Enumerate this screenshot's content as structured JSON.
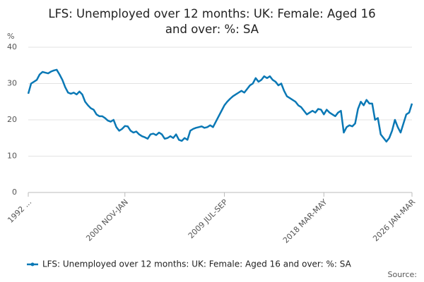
{
  "chart_data": {
    "type": "line",
    "title": "LFS: Unemployed over 12 months: UK: Female: Aged 16 and over: %: SA",
    "y_label": "%",
    "source": "Source:",
    "categories": [
      "1992 ...",
      null,
      null,
      null,
      null,
      null,
      null,
      null,
      null,
      null,
      null,
      null,
      null,
      null,
      null,
      null,
      null,
      null,
      null,
      null,
      null,
      null,
      null,
      null,
      null,
      null,
      null,
      null,
      null,
      null,
      null,
      null,
      null,
      null,
      "2000 NOV-JAN",
      null,
      null,
      null,
      null,
      null,
      null,
      null,
      null,
      null,
      null,
      null,
      null,
      null,
      null,
      null,
      null,
      null,
      null,
      null,
      null,
      null,
      null,
      null,
      null,
      null,
      null,
      null,
      null,
      null,
      null,
      null,
      null,
      null,
      null,
      "2009 JUL-SEP",
      null,
      null,
      null,
      null,
      null,
      null,
      null,
      null,
      null,
      null,
      null,
      null,
      null,
      null,
      null,
      null,
      null,
      null,
      null,
      null,
      null,
      null,
      null,
      null,
      null,
      null,
      null,
      null,
      null,
      null,
      null,
      null,
      null,
      null,
      "2018 MAR-MAY",
      null,
      null,
      null,
      null,
      null,
      null,
      null,
      null,
      null,
      null,
      null,
      null,
      null,
      null,
      null,
      null,
      null,
      null,
      null,
      null,
      null,
      null,
      null,
      null,
      null,
      null,
      null,
      null,
      null,
      null,
      "2026 JAN-MAR"
    ],
    "series": [
      {
        "name": "LFS: Unemployed over 12 months: UK: Female: Aged 16 and over: %: SA",
        "color": "#0a78b5",
        "values": [
          27.2,
          30,
          30.5,
          31,
          32.5,
          33.2,
          33,
          32.8,
          33.3,
          33.6,
          33.8,
          32.5,
          31,
          29,
          27.5,
          27.2,
          27.5,
          27,
          27.8,
          27,
          25,
          24,
          23.2,
          22.8,
          21.5,
          21,
          21,
          20.5,
          19.8,
          19.5,
          20,
          18,
          17,
          17.5,
          18.3,
          18.2,
          17,
          16.5,
          16.8,
          16,
          15.5,
          15.2,
          14.8,
          16,
          16.2,
          15.8,
          16.5,
          16,
          14.8,
          15,
          15.5,
          15,
          16,
          14.5,
          14.2,
          15,
          14.5,
          17,
          17.5,
          17.8,
          18,
          18.2,
          17.8,
          18,
          18.5,
          18,
          19.5,
          21,
          22.5,
          24,
          25,
          25.8,
          26.5,
          27,
          27.5,
          28,
          27.5,
          28.5,
          29.5,
          30,
          31.5,
          30.5,
          31,
          32,
          31.5,
          32,
          31,
          30.5,
          29.5,
          30,
          28,
          26.5,
          26,
          25.5,
          25,
          24,
          23.5,
          22.5,
          21.5,
          22,
          22.5,
          22,
          23,
          22.8,
          21.5,
          22.8,
          22,
          21.5,
          21,
          22,
          22.5,
          16.5,
          18,
          18.5,
          18.2,
          19,
          23,
          25,
          24,
          25.5,
          24.5,
          24.5,
          20,
          20.5,
          16,
          15,
          14,
          15,
          17,
          20,
          18,
          16.5,
          19,
          21.5,
          22,
          24.5
        ]
      }
    ],
    "ylim": [
      0,
      40
    ],
    "yticks": [
      0,
      10,
      20,
      30,
      40
    ],
    "grid": true
  }
}
